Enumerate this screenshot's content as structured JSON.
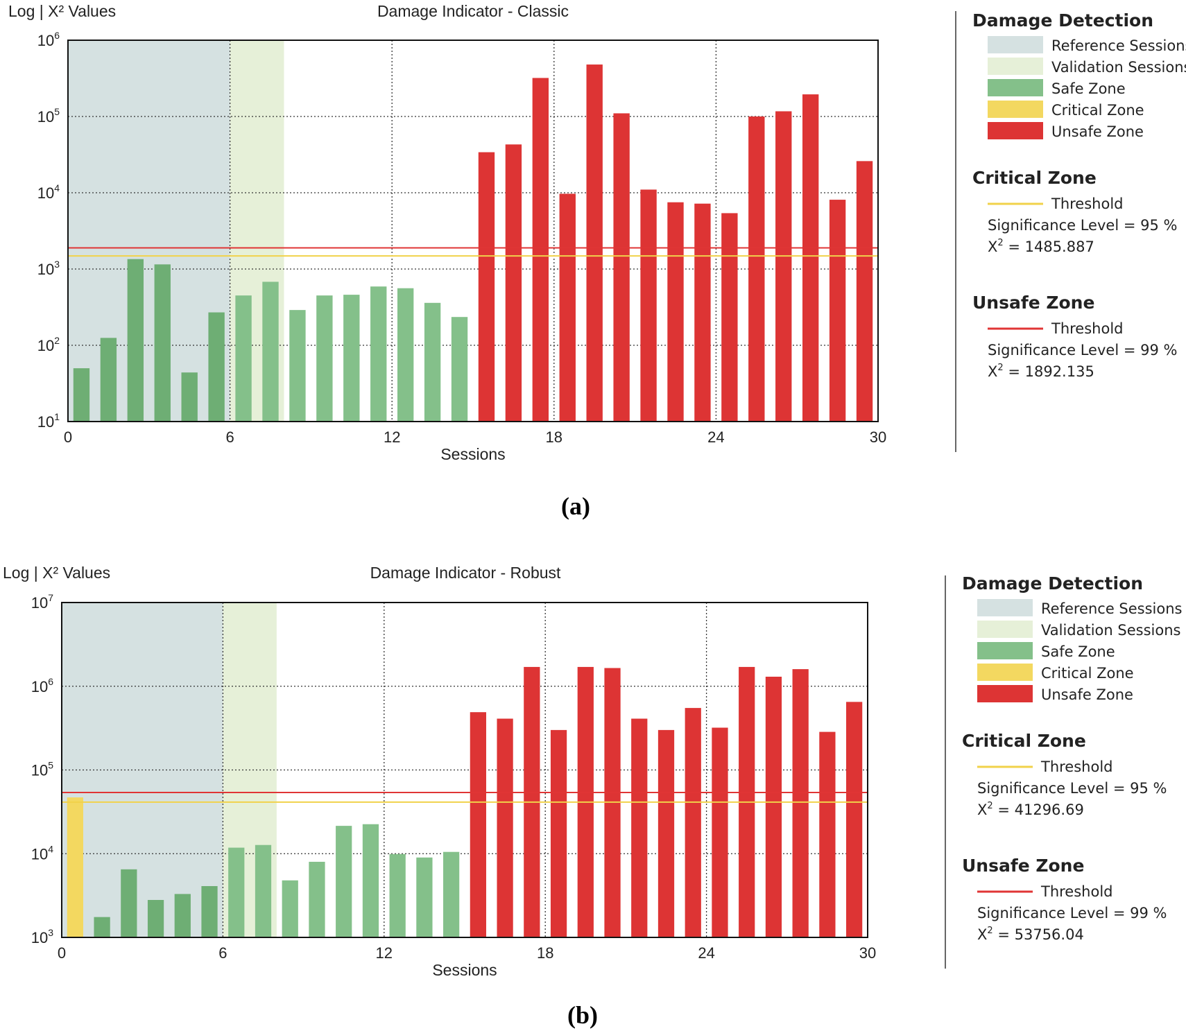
{
  "colors": {
    "reference": "#d5e1e1",
    "validation": "#e6f0d8",
    "safe_ref": "#6eae74",
    "safe_other": "#84c08a",
    "critical": "#f3d860",
    "unsafe": "#dd3434",
    "critical_line": "#f1d24a",
    "unsafe_line": "#e03535"
  },
  "chart_data": [
    {
      "type": "bar",
      "caption": "(a)",
      "title": "Damage Indicator - Classic",
      "ylabel": "Log | X² Values",
      "xlabel": "Sessions",
      "yscale": "log",
      "ylim_exp": [
        1,
        6
      ],
      "y_ticks": [
        {
          "base": "10",
          "exp": "1"
        },
        {
          "base": "10",
          "exp": "2"
        },
        {
          "base": "10",
          "exp": "3"
        },
        {
          "base": "10",
          "exp": "4"
        },
        {
          "base": "10",
          "exp": "5"
        },
        {
          "base": "10",
          "exp": "6"
        }
      ],
      "xlim": [
        0,
        30
      ],
      "x_ticks": [
        "0",
        "6",
        "12",
        "18",
        "24",
        "30"
      ],
      "reference_range": [
        0,
        6
      ],
      "validation_range": [
        6,
        8
      ],
      "critical_threshold": 1485.887,
      "unsafe_threshold": 1892.135,
      "bars": [
        {
          "x": 0.5,
          "value": 50,
          "zone": "safe"
        },
        {
          "x": 1.5,
          "value": 125,
          "zone": "safe"
        },
        {
          "x": 2.5,
          "value": 1350,
          "zone": "safe"
        },
        {
          "x": 3.5,
          "value": 1150,
          "zone": "safe"
        },
        {
          "x": 4.5,
          "value": 44,
          "zone": "safe"
        },
        {
          "x": 5.5,
          "value": 270,
          "zone": "safe"
        },
        {
          "x": 6.5,
          "value": 450,
          "zone": "safe"
        },
        {
          "x": 7.5,
          "value": 680,
          "zone": "safe"
        },
        {
          "x": 8.5,
          "value": 290,
          "zone": "safe"
        },
        {
          "x": 9.5,
          "value": 450,
          "zone": "safe"
        },
        {
          "x": 10.5,
          "value": 460,
          "zone": "safe"
        },
        {
          "x": 11.5,
          "value": 590,
          "zone": "safe"
        },
        {
          "x": 12.5,
          "value": 560,
          "zone": "safe"
        },
        {
          "x": 13.5,
          "value": 360,
          "zone": "safe"
        },
        {
          "x": 14.5,
          "value": 235,
          "zone": "safe"
        },
        {
          "x": 15.5,
          "value": 34000,
          "zone": "unsafe"
        },
        {
          "x": 16.5,
          "value": 43000,
          "zone": "unsafe"
        },
        {
          "x": 17.5,
          "value": 320000,
          "zone": "unsafe"
        },
        {
          "x": 18.5,
          "value": 9700,
          "zone": "unsafe"
        },
        {
          "x": 19.5,
          "value": 480000,
          "zone": "unsafe"
        },
        {
          "x": 20.5,
          "value": 110000,
          "zone": "unsafe"
        },
        {
          "x": 21.5,
          "value": 11000,
          "zone": "unsafe"
        },
        {
          "x": 22.5,
          "value": 7500,
          "zone": "unsafe"
        },
        {
          "x": 23.5,
          "value": 7200,
          "zone": "unsafe"
        },
        {
          "x": 24.5,
          "value": 5400,
          "zone": "unsafe"
        },
        {
          "x": 25.5,
          "value": 100000,
          "zone": "unsafe"
        },
        {
          "x": 26.5,
          "value": 117000,
          "zone": "unsafe"
        },
        {
          "x": 27.5,
          "value": 195000,
          "zone": "unsafe"
        },
        {
          "x": 28.5,
          "value": 8100,
          "zone": "unsafe"
        },
        {
          "x": 29.5,
          "value": 26000,
          "zone": "unsafe"
        }
      ],
      "legend": {
        "title": "Damage Detection",
        "items": [
          {
            "label": "Reference Sessions",
            "color": "#d5e1e1"
          },
          {
            "label": "Validation Sessions",
            "color": "#e6f0d8"
          },
          {
            "label": "Safe Zone",
            "color": "#84c08a"
          },
          {
            "label": "Critical Zone",
            "color": "#f3d860"
          },
          {
            "label": "Unsafe Zone",
            "color": "#dd3434"
          }
        ],
        "critical": {
          "title": "Critical Zone",
          "threshold": "Threshold",
          "significance": "Significance Level = 95 %",
          "x2_label": "X",
          "x2_sup": "2",
          "x2_value": " = 1485.887"
        },
        "unsafe": {
          "title": "Unsafe Zone",
          "threshold": "Threshold",
          "significance": "Significance Level = 99 %",
          "x2_label": "X",
          "x2_sup": "2",
          "x2_value": " = 1892.135"
        }
      }
    },
    {
      "type": "bar",
      "caption": "(b)",
      "title": "Damage Indicator - Robust",
      "ylabel": "Log | X² Values",
      "xlabel": "Sessions",
      "yscale": "log",
      "ylim_exp": [
        3,
        7
      ],
      "y_ticks": [
        {
          "base": "10",
          "exp": "3"
        },
        {
          "base": "10",
          "exp": "4"
        },
        {
          "base": "10",
          "exp": "5"
        },
        {
          "base": "10",
          "exp": "6"
        },
        {
          "base": "10",
          "exp": "7"
        }
      ],
      "xlim": [
        0,
        30
      ],
      "x_ticks": [
        "0",
        "6",
        "12",
        "18",
        "24",
        "30"
      ],
      "reference_range": [
        0,
        6
      ],
      "validation_range": [
        6,
        8
      ],
      "critical_threshold": 41296.69,
      "unsafe_threshold": 53756.04,
      "bars": [
        {
          "x": 0.5,
          "value": 47000,
          "zone": "critical"
        },
        {
          "x": 1.5,
          "value": 1750,
          "zone": "safe"
        },
        {
          "x": 2.5,
          "value": 6500,
          "zone": "safe"
        },
        {
          "x": 3.5,
          "value": 2800,
          "zone": "safe"
        },
        {
          "x": 4.5,
          "value": 3300,
          "zone": "safe"
        },
        {
          "x": 5.5,
          "value": 4100,
          "zone": "safe"
        },
        {
          "x": 6.5,
          "value": 11800,
          "zone": "safe"
        },
        {
          "x": 7.5,
          "value": 12700,
          "zone": "safe"
        },
        {
          "x": 8.5,
          "value": 4800,
          "zone": "safe"
        },
        {
          "x": 9.5,
          "value": 8000,
          "zone": "safe"
        },
        {
          "x": 10.5,
          "value": 21500,
          "zone": "safe"
        },
        {
          "x": 11.5,
          "value": 22500,
          "zone": "safe"
        },
        {
          "x": 12.5,
          "value": 9900,
          "zone": "safe"
        },
        {
          "x": 13.5,
          "value": 9000,
          "zone": "safe"
        },
        {
          "x": 14.5,
          "value": 10500,
          "zone": "safe"
        },
        {
          "x": 15.5,
          "value": 490000,
          "zone": "unsafe"
        },
        {
          "x": 16.5,
          "value": 410000,
          "zone": "unsafe"
        },
        {
          "x": 17.5,
          "value": 1700000,
          "zone": "unsafe"
        },
        {
          "x": 18.5,
          "value": 300000,
          "zone": "unsafe"
        },
        {
          "x": 19.5,
          "value": 1700000,
          "zone": "unsafe"
        },
        {
          "x": 20.5,
          "value": 1650000,
          "zone": "unsafe"
        },
        {
          "x": 21.5,
          "value": 410000,
          "zone": "unsafe"
        },
        {
          "x": 22.5,
          "value": 300000,
          "zone": "unsafe"
        },
        {
          "x": 23.5,
          "value": 550000,
          "zone": "unsafe"
        },
        {
          "x": 24.5,
          "value": 320000,
          "zone": "unsafe"
        },
        {
          "x": 25.5,
          "value": 1700000,
          "zone": "unsafe"
        },
        {
          "x": 26.5,
          "value": 1300000,
          "zone": "unsafe"
        },
        {
          "x": 27.5,
          "value": 1600000,
          "zone": "unsafe"
        },
        {
          "x": 28.5,
          "value": 285000,
          "zone": "unsafe"
        },
        {
          "x": 29.5,
          "value": 650000,
          "zone": "unsafe"
        }
      ],
      "legend": {
        "title": "Damage Detection",
        "items": [
          {
            "label": "Reference Sessions",
            "color": "#d5e1e1"
          },
          {
            "label": "Validation Sessions",
            "color": "#e6f0d8"
          },
          {
            "label": "Safe Zone",
            "color": "#84c08a"
          },
          {
            "label": "Critical Zone",
            "color": "#f3d860"
          },
          {
            "label": "Unsafe Zone",
            "color": "#dd3434"
          }
        ],
        "critical": {
          "title": "Critical Zone",
          "threshold": "Threshold",
          "significance": "Significance Level = 95 %",
          "x2_label": "X",
          "x2_sup": "2",
          "x2_value": " = 41296.69"
        },
        "unsafe": {
          "title": "Unsafe Zone",
          "threshold": "Threshold",
          "significance": "Significance Level = 99 %",
          "x2_label": "X",
          "x2_sup": "2",
          "x2_value": " = 53756.04"
        }
      }
    }
  ]
}
